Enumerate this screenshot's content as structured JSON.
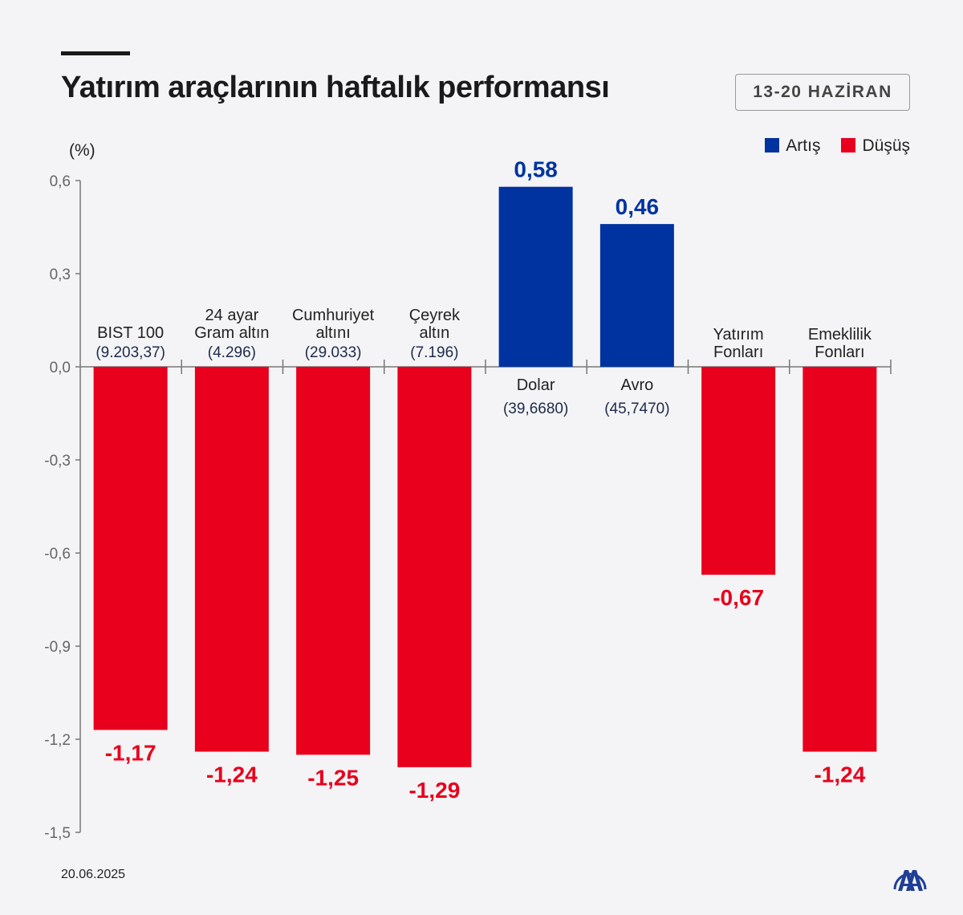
{
  "title": "Yatırım araçlarının haftalık performansı",
  "date_range": "13-20 HAZİRAN",
  "footer_date": "20.06.2025",
  "logo_text": "AA",
  "colors": {
    "increase": "#0033a0",
    "decrease": "#e8001c"
  },
  "chart_data": {
    "type": "bar",
    "title": "Yatırım araçlarının haftalık performansı",
    "ylabel": "(%)",
    "ylim": [
      -1.5,
      0.6
    ],
    "yticks": [
      "0,6",
      "0,3",
      "0,0",
      "-0,3",
      "-0,6",
      "-0,9",
      "-1,2",
      "-1,5"
    ],
    "ytick_values": [
      0.6,
      0.3,
      0,
      -0.3,
      -0.6,
      -0.9,
      -1.2,
      -1.5
    ],
    "legend": [
      {
        "label": "Artış",
        "color": "#0033a0"
      },
      {
        "label": "Düşüş",
        "color": "#e8001c"
      }
    ],
    "legend_position": "top-right",
    "categories": [
      {
        "lines": [
          "BIST 100"
        ],
        "sub": "(9.203,37)",
        "value": -1.17,
        "label": "-1,17"
      },
      {
        "lines": [
          "24 ayar",
          "Gram altın"
        ],
        "sub": "(4.296)",
        "value": -1.24,
        "label": "-1,24"
      },
      {
        "lines": [
          "Cumhuriyet",
          "altını"
        ],
        "sub": "(29.033)",
        "value": -1.25,
        "label": "-1,25"
      },
      {
        "lines": [
          "Çeyrek",
          "altın"
        ],
        "sub": "(7.196)",
        "value": -1.29,
        "label": "-1,29"
      },
      {
        "lines": [
          "Dolar"
        ],
        "sub": "(39,6680)",
        "value": 0.58,
        "label": "0,58"
      },
      {
        "lines": [
          "Avro"
        ],
        "sub": "(45,7470)",
        "value": 0.46,
        "label": "0,46"
      },
      {
        "lines": [
          "Yatırım",
          "Fonları"
        ],
        "sub": "",
        "value": -0.67,
        "label": "-0,67"
      },
      {
        "lines": [
          "Emeklilik",
          "Fonları"
        ],
        "sub": "",
        "value": -1.24,
        "label": "-1,24"
      }
    ]
  }
}
